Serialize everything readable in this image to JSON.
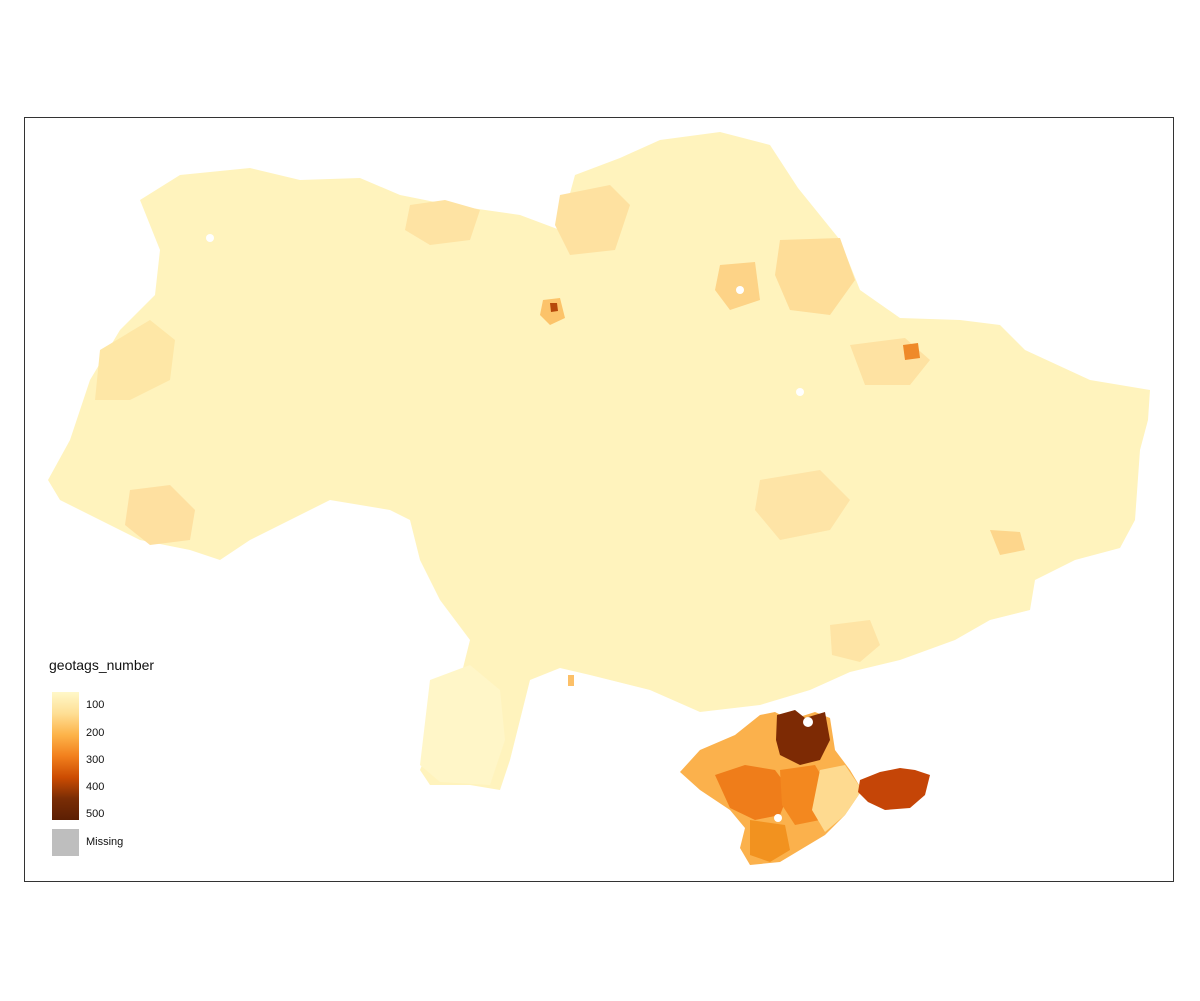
{
  "legend": {
    "title": "geotags_number",
    "ticks": [
      {
        "label": "100",
        "value": 100
      },
      {
        "label": "200",
        "value": 200
      },
      {
        "label": "300",
        "value": 300
      },
      {
        "label": "400",
        "value": 400
      },
      {
        "label": "500",
        "value": 500
      }
    ],
    "range": [
      60,
      500
    ],
    "missing_label": "Missing",
    "missing_color": "#bebebe",
    "gradient_colors": [
      "#fff8c9",
      "#fedf95",
      "#fdb44a",
      "#f2801d",
      "#cc4c02",
      "#7a2d05",
      "#5c1f03"
    ]
  },
  "map": {
    "background": "#ffffff",
    "base_fill_color": "#fff5c4",
    "scale": "sequential YlOrBr"
  }
}
